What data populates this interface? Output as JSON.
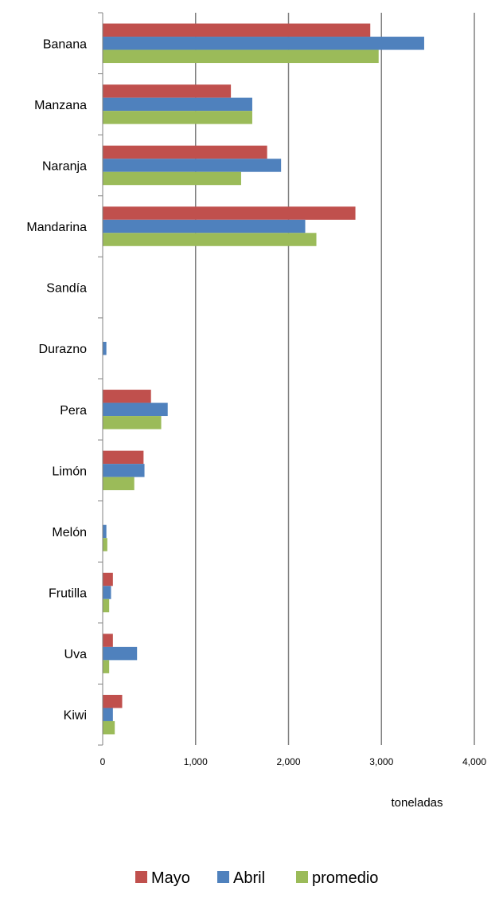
{
  "chart_data": {
    "type": "bar",
    "orientation": "horizontal",
    "categories": [
      "Banana",
      "Manzana",
      "Naranja",
      "Mandarina",
      "Sandía",
      "Durazno",
      "Pera",
      "Limón",
      "Melón",
      "Frutilla",
      "Uva",
      "Kiwi"
    ],
    "series": [
      {
        "name": "Mayo",
        "color": "#C0504D",
        "values": [
          2880,
          1380,
          1770,
          2720,
          0,
          0,
          520,
          440,
          0,
          110,
          110,
          210
        ]
      },
      {
        "name": "Abril",
        "color": "#4F81BD",
        "values": [
          3460,
          1610,
          1920,
          2180,
          0,
          40,
          700,
          450,
          40,
          90,
          370,
          110
        ]
      },
      {
        "name": "promedio",
        "color": "#9BBB59",
        "values": [
          2970,
          1610,
          1490,
          2300,
          0,
          0,
          630,
          340,
          50,
          70,
          70,
          130
        ]
      }
    ],
    "xlim": [
      0,
      4000
    ],
    "xticks": [
      "0",
      "1,000",
      "2,000",
      "3,000",
      "4,000"
    ],
    "xlabel": "toneladas",
    "grid": "vertical",
    "legend_position": "bottom"
  }
}
